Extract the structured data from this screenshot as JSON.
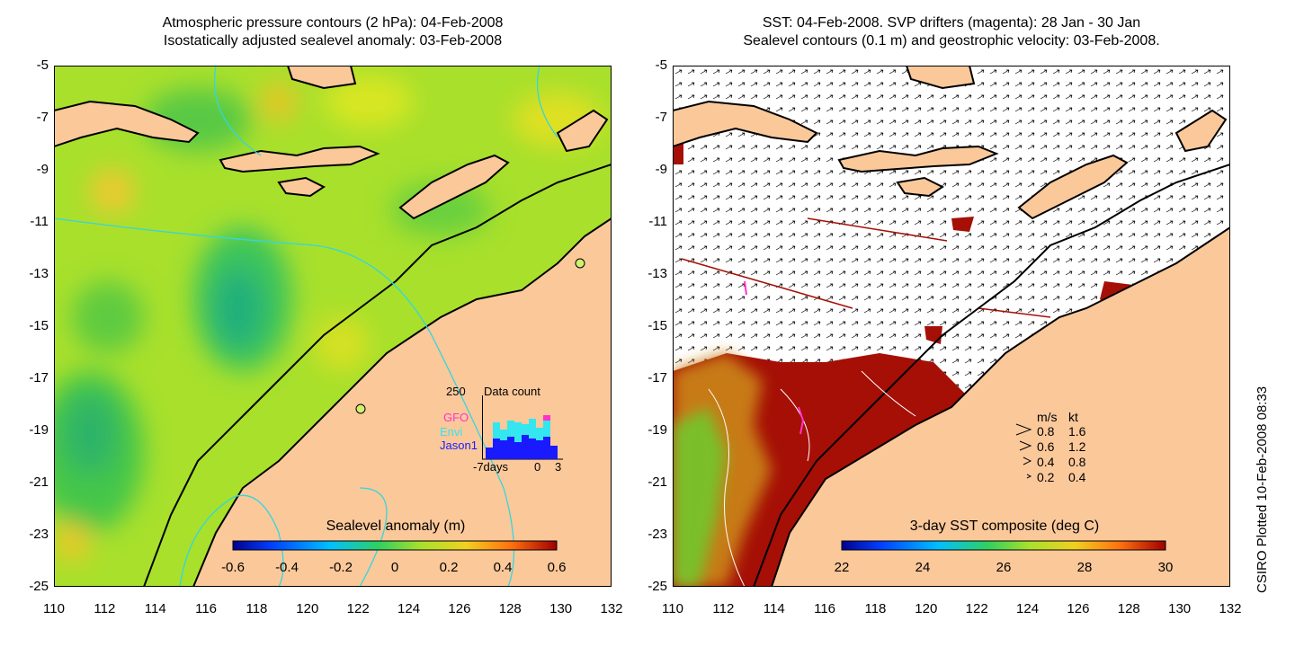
{
  "left_panel": {
    "title_line1": "Atmospheric pressure contours (2 hPa): 04-Feb-2008",
    "title_line2": "Isostatically adjusted sealevel anomaly: 03-Feb-2008",
    "colorbar": {
      "title": "Sealevel anomaly (m)",
      "ticks": [
        "-0.6",
        "-0.4",
        "-0.2",
        "0",
        "0.2",
        "0.4",
        "0.6"
      ]
    },
    "inset": {
      "top_value": "250",
      "title": "Data count",
      "sources": [
        {
          "name": "GFO",
          "color": "#ff33cc"
        },
        {
          "name": "Envi",
          "color": "#33e6f0"
        },
        {
          "name": "Jason1",
          "color": "#1a1aff"
        }
      ],
      "xlabel_left": "-7days",
      "xlabel_mid": "0",
      "xlabel_right": "3"
    }
  },
  "right_panel": {
    "title_line1": "SST: 04-Feb-2008. SVP drifters (magenta): 28 Jan - 30 Jan",
    "title_line2": "Sealevel contours (0.1 m) and geostrophic velocity: 03-Feb-2008.",
    "colorbar": {
      "title": "3-day SST composite (deg C)",
      "ticks": [
        "22",
        "24",
        "26",
        "28",
        "30"
      ]
    },
    "velocity_legend": {
      "header_ms": "m/s",
      "header_kt": "kt",
      "rows": [
        {
          "ms": "0.8",
          "kt": "1.6"
        },
        {
          "ms": "0.6",
          "kt": "1.2"
        },
        {
          "ms": "0.4",
          "kt": "0.8"
        },
        {
          "ms": "0.2",
          "kt": "0.4"
        }
      ]
    }
  },
  "axes": {
    "y_ticks": [
      "-5",
      "-7",
      "-9",
      "-11",
      "-13",
      "-15",
      "-17",
      "-19",
      "-21",
      "-23",
      "-25"
    ],
    "x_ticks": [
      "110",
      "112",
      "114",
      "116",
      "118",
      "120",
      "122",
      "124",
      "126",
      "128",
      "130",
      "132"
    ],
    "lat_range": [
      -25,
      -5
    ],
    "lon_range": [
      110,
      132
    ]
  },
  "credit": "CSIRO Plotted 10-Feb-2008 08:33",
  "colors": {
    "land": "#fbc89a",
    "sst_hot": "#a50f06",
    "sea_green": "#9ee02a",
    "contour_cyan": "#33d6e0"
  }
}
